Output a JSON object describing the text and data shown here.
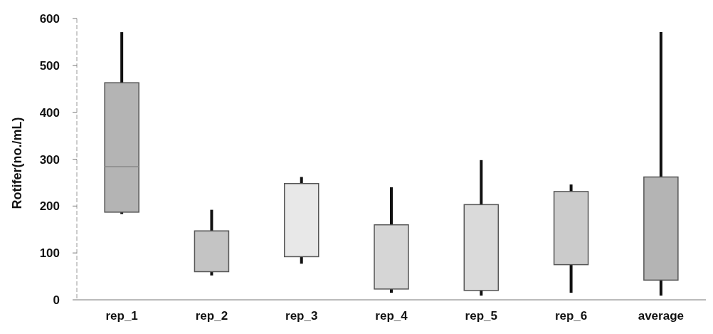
{
  "chart_data": {
    "type": "box",
    "ylabel": "Rotifer(no./mL)",
    "categories": [
      "rep_1",
      "rep_2",
      "rep_3",
      "rep_4",
      "rep_5",
      "rep_6",
      "average"
    ],
    "boxes": [
      {
        "low": 183,
        "q1": 187,
        "median": 284,
        "q3": 463,
        "high": 571
      },
      {
        "low": 52,
        "q1": 60,
        "q3": 147,
        "high": 192
      },
      {
        "low": 77,
        "q1": 92,
        "q3": 248,
        "high": 262
      },
      {
        "low": 15,
        "q1": 23,
        "q3": 160,
        "high": 240
      },
      {
        "low": 9,
        "q1": 20,
        "q3": 203,
        "high": 298
      },
      {
        "low": 15,
        "q1": 75,
        "q3": 231,
        "high": 246
      },
      {
        "low": 9,
        "q1": 42,
        "q3": 262,
        "high": 571
      }
    ],
    "colors": [
      "#b4b4b4",
      "#c4c4c4",
      "#e8e8e8",
      "#d6d6d6",
      "#dadada",
      "#cbcbcb",
      "#b4b4b4"
    ],
    "ylim": [
      0,
      600
    ],
    "yticks": [
      0,
      100,
      200,
      300,
      400,
      500,
      600
    ],
    "grid": false,
    "legend": false
  }
}
